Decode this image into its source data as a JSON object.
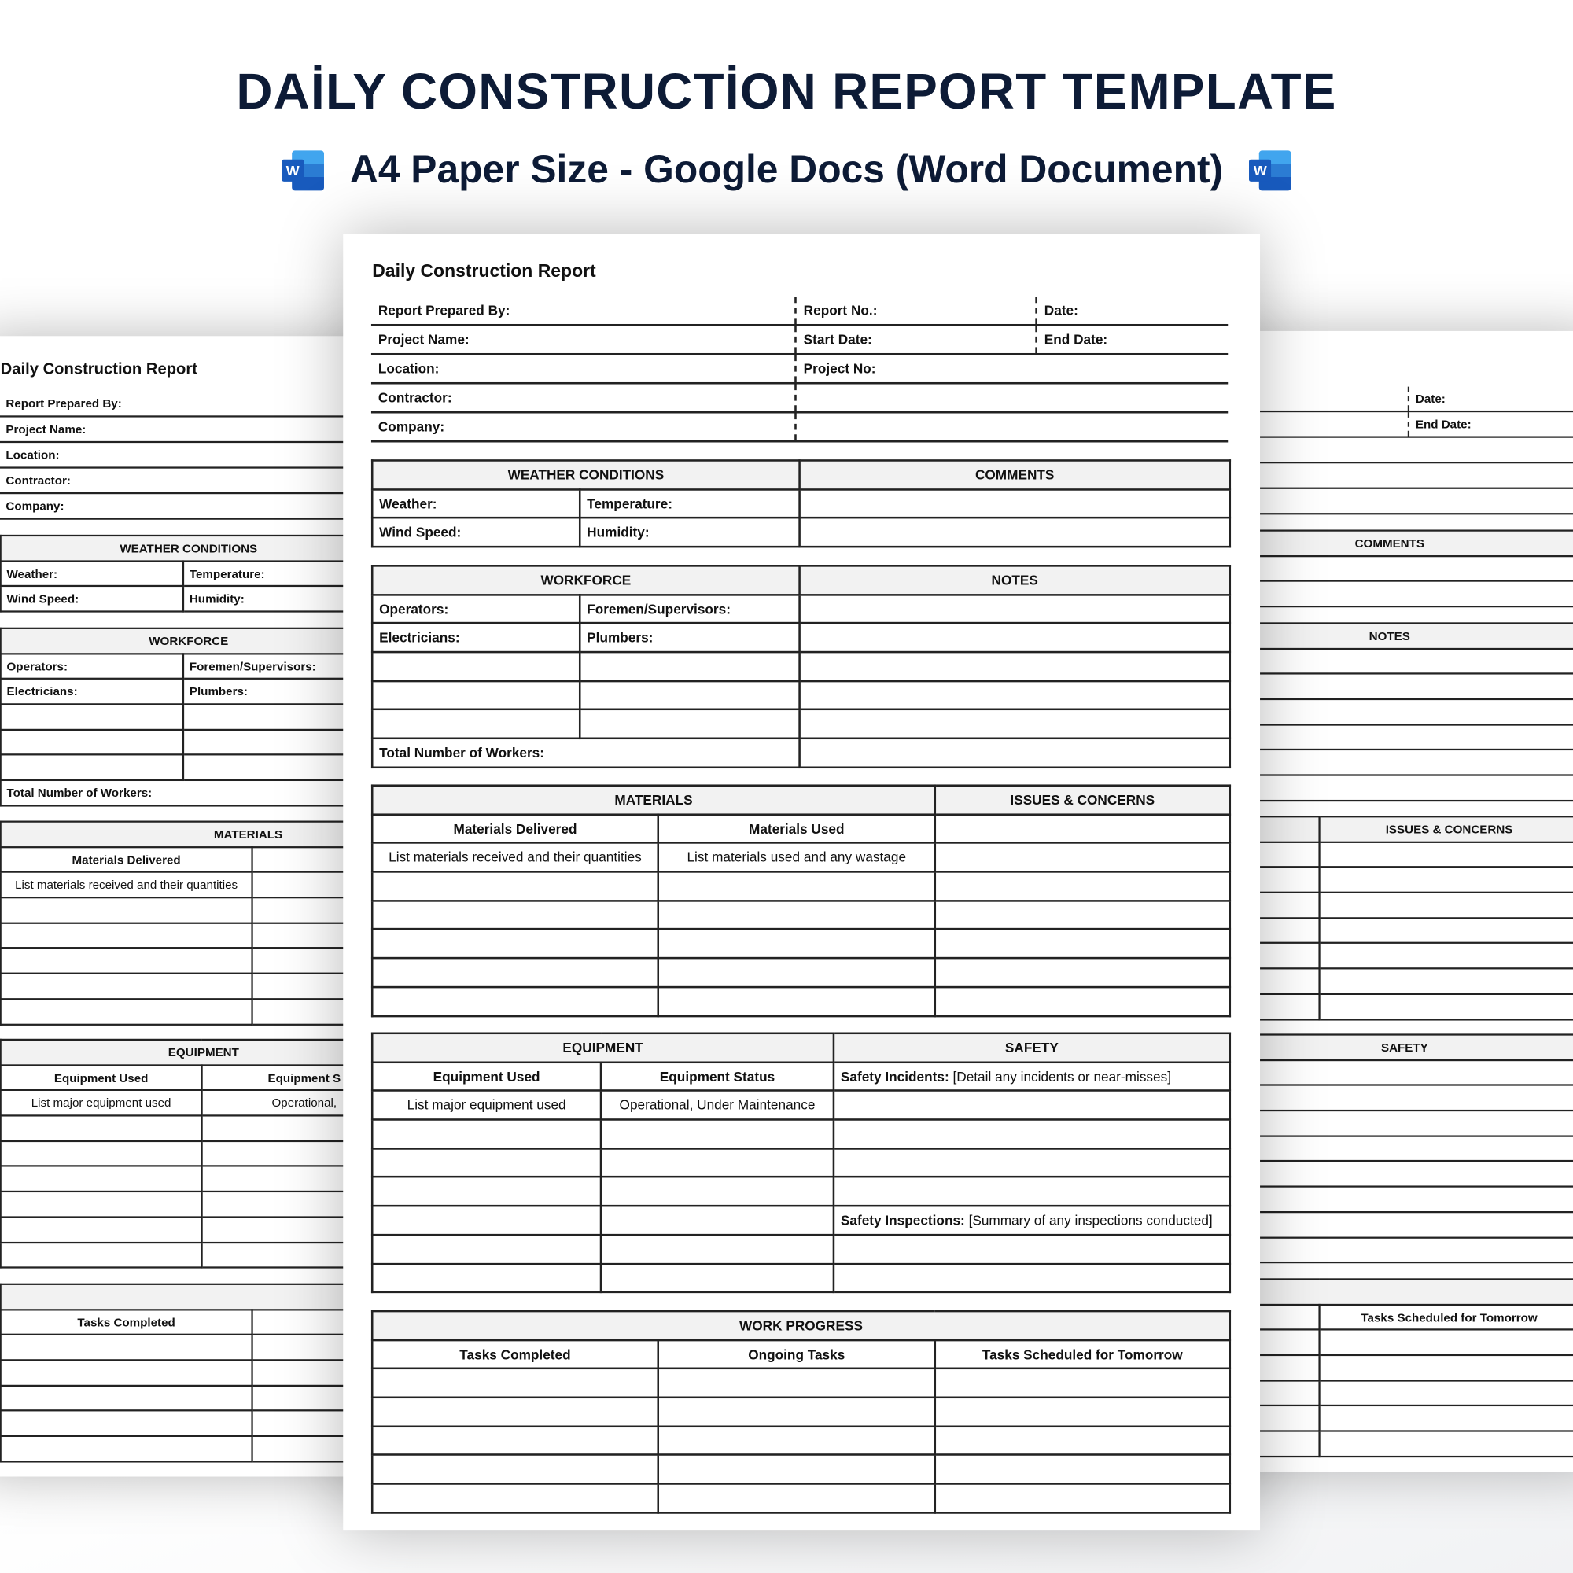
{
  "hero": {
    "title": "DAİLY CONSTRUCTİON REPORT TEMPLATE",
    "subtitle": "A4 Paper Size - Google Docs (Word Document)",
    "icon_letter": "W",
    "icon": "microsoft-word-icon",
    "color": "#0d1b36"
  },
  "doc": {
    "title": "Daily Construction Report",
    "info": {
      "prepared_by": "Report Prepared By:",
      "report_no": "Report No.:",
      "date": "Date:",
      "project_name": "Project Name:",
      "start_date": "Start Date:",
      "end_date": "End Date:",
      "location": "Location:",
      "project_no": "Project No:",
      "contractor": "Contractor:",
      "company": "Company:"
    },
    "weather": {
      "header": "WEATHER CONDITIONS",
      "comments_header": "COMMENTS",
      "weather": "Weather:",
      "temperature": "Temperature:",
      "wind_speed": "Wind Speed:",
      "humidity": "Humidity:"
    },
    "workforce": {
      "header": "WORKFORCE",
      "notes_header": "NOTES",
      "operators": "Operators:",
      "foremen": "Foremen/Supervisors:",
      "electricians": "Electricians:",
      "plumbers": "Plumbers:",
      "total": "Total Number of Workers:"
    },
    "materials": {
      "header": "MATERIALS",
      "issues_header": "ISSUES & CONCERNS",
      "delivered": "Materials Delivered",
      "used": "Materials Used",
      "delivered_hint": "List materials received and their quantities",
      "used_hint": "List materials used and any wastage"
    },
    "equipment": {
      "header": "EQUIPMENT",
      "safety_header": "SAFETY",
      "used": "Equipment Used",
      "status": "Equipment Status",
      "used_hint": "List major equipment used",
      "status_hint": "Operational, Under Maintenance",
      "incidents_label": "Safety Incidents:",
      "incidents_hint": " [Detail any incidents or near-misses]",
      "inspections_label": "Safety Inspections:",
      "inspections_hint": " [Summary of any inspections conducted]"
    },
    "progress": {
      "header": "WORK PROGRESS",
      "completed": "Tasks Completed",
      "ongoing": "Ongoing Tasks",
      "tomorrow": "Tasks Scheduled for Tomorrow"
    }
  }
}
